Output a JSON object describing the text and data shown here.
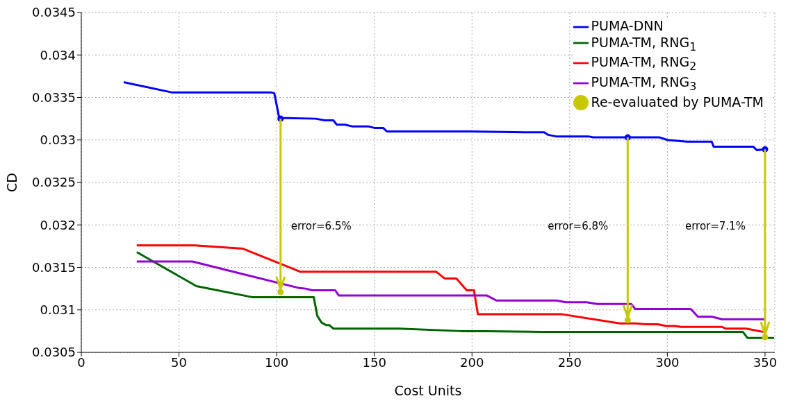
{
  "chart_data": {
    "type": "line",
    "xlabel": "Cost Units",
    "ylabel": "CD",
    "xlim": [
      0,
      355
    ],
    "xticks": [
      0,
      50,
      100,
      150,
      200,
      250,
      300,
      350
    ],
    "ylim": [
      0.0305,
      0.0345
    ],
    "yticks": [
      0.0305,
      0.031,
      0.0315,
      0.032,
      0.0325,
      0.033,
      0.0335,
      0.034,
      0.0345
    ],
    "grid": true,
    "legend": "top right",
    "line_style": "solid",
    "series": [
      {
        "name": "PUMA-DNN",
        "color": "#0000ff",
        "x": [
          21.7,
          46.2,
          97,
          98.8,
          101.3,
          120,
          124.6,
          129,
          130.8,
          135,
          138.6,
          146.8,
          150.4,
          154.6,
          156.4,
          199,
          227,
          237,
          239,
          243.4,
          260,
          262,
          279.7,
          296,
          300,
          310,
          322.7,
          323.7,
          344,
          345.8,
          350
        ],
        "values": [
          0.03368,
          0.03356,
          0.03356,
          0.03355,
          0.03326,
          0.03325,
          0.03323,
          0.03323,
          0.03318,
          0.03318,
          0.03316,
          0.03316,
          0.03314,
          0.03314,
          0.0331,
          0.0331,
          0.03309,
          0.03309,
          0.03306,
          0.03304,
          0.03304,
          0.03303,
          0.03303,
          0.03303,
          0.033,
          0.03298,
          0.03298,
          0.03292,
          0.03292,
          0.03288,
          0.03289
        ]
      },
      {
        "name": "PUMA-TM, RNG$_{1}$",
        "color": "#006400",
        "x": [
          28.4,
          58.9,
          87.4,
          119,
          120.8,
          123,
          125.4,
          127,
          129,
          162.8,
          194.7,
          207,
          235.6,
          338.7,
          341,
          354.6
        ],
        "values": [
          0.03168,
          0.03128,
          0.03115,
          0.03115,
          0.03093,
          0.03085,
          0.03082,
          0.03082,
          0.03078,
          0.03078,
          0.03075,
          0.03075,
          0.03074,
          0.03074,
          0.03067,
          0.03067
        ]
      },
      {
        "name": "PUMA-TM, RNG$_{2}$",
        "color": "#ff0000",
        "x": [
          28.4,
          58,
          82.8,
          112,
          181.6,
          186,
          192,
          197.3,
          201,
          203,
          245.6,
          275.7,
          283.6,
          289,
          295,
          299.6,
          303.8,
          307,
          328,
          329.8,
          340.4,
          349.3
        ],
        "values": [
          0.03176,
          0.03176,
          0.03172,
          0.03145,
          0.03145,
          0.03137,
          0.03137,
          0.03123,
          0.03123,
          0.03095,
          0.03095,
          0.03084,
          0.03084,
          0.03083,
          0.03083,
          0.03081,
          0.03081,
          0.0308,
          0.0308,
          0.03078,
          0.03078,
          0.03074
        ]
      },
      {
        "name": "PUMA-TM, RNG$_{3}$",
        "color": "#9400d3",
        "x": [
          28.4,
          56.9,
          82.8,
          111,
          114.8,
          118.3,
          121,
          130,
          131.8,
          207.5,
          212.5,
          243.4,
          248,
          258.7,
          264,
          281.5,
          283.6,
          312,
          315.6,
          322.7,
          328,
          350
        ],
        "values": [
          0.03157,
          0.03157,
          0.03142,
          0.03126,
          0.03125,
          0.03123,
          0.03123,
          0.03123,
          0.03117,
          0.03117,
          0.03111,
          0.03111,
          0.03109,
          0.03109,
          0.03107,
          0.03107,
          0.03101,
          0.03101,
          0.03092,
          0.03092,
          0.03089,
          0.03089
        ]
      },
      {
        "type": "scatter",
        "color": "#0000ff",
        "x": [
          102,
          279.7,
          350
        ],
        "values": [
          0.03325,
          0.03303,
          0.03289
        ]
      },
      {
        "type": "scatter",
        "name": "Re-evaluated by PUMA-TM",
        "color": "#c8c800",
        "x": [
          102,
          279.7,
          350
        ],
        "values": [
          0.03121,
          0.03088,
          0.03068
        ]
      }
    ],
    "annotations": [
      "error=6.5%",
      "error=6.8%",
      "error=7.1%"
    ]
  }
}
